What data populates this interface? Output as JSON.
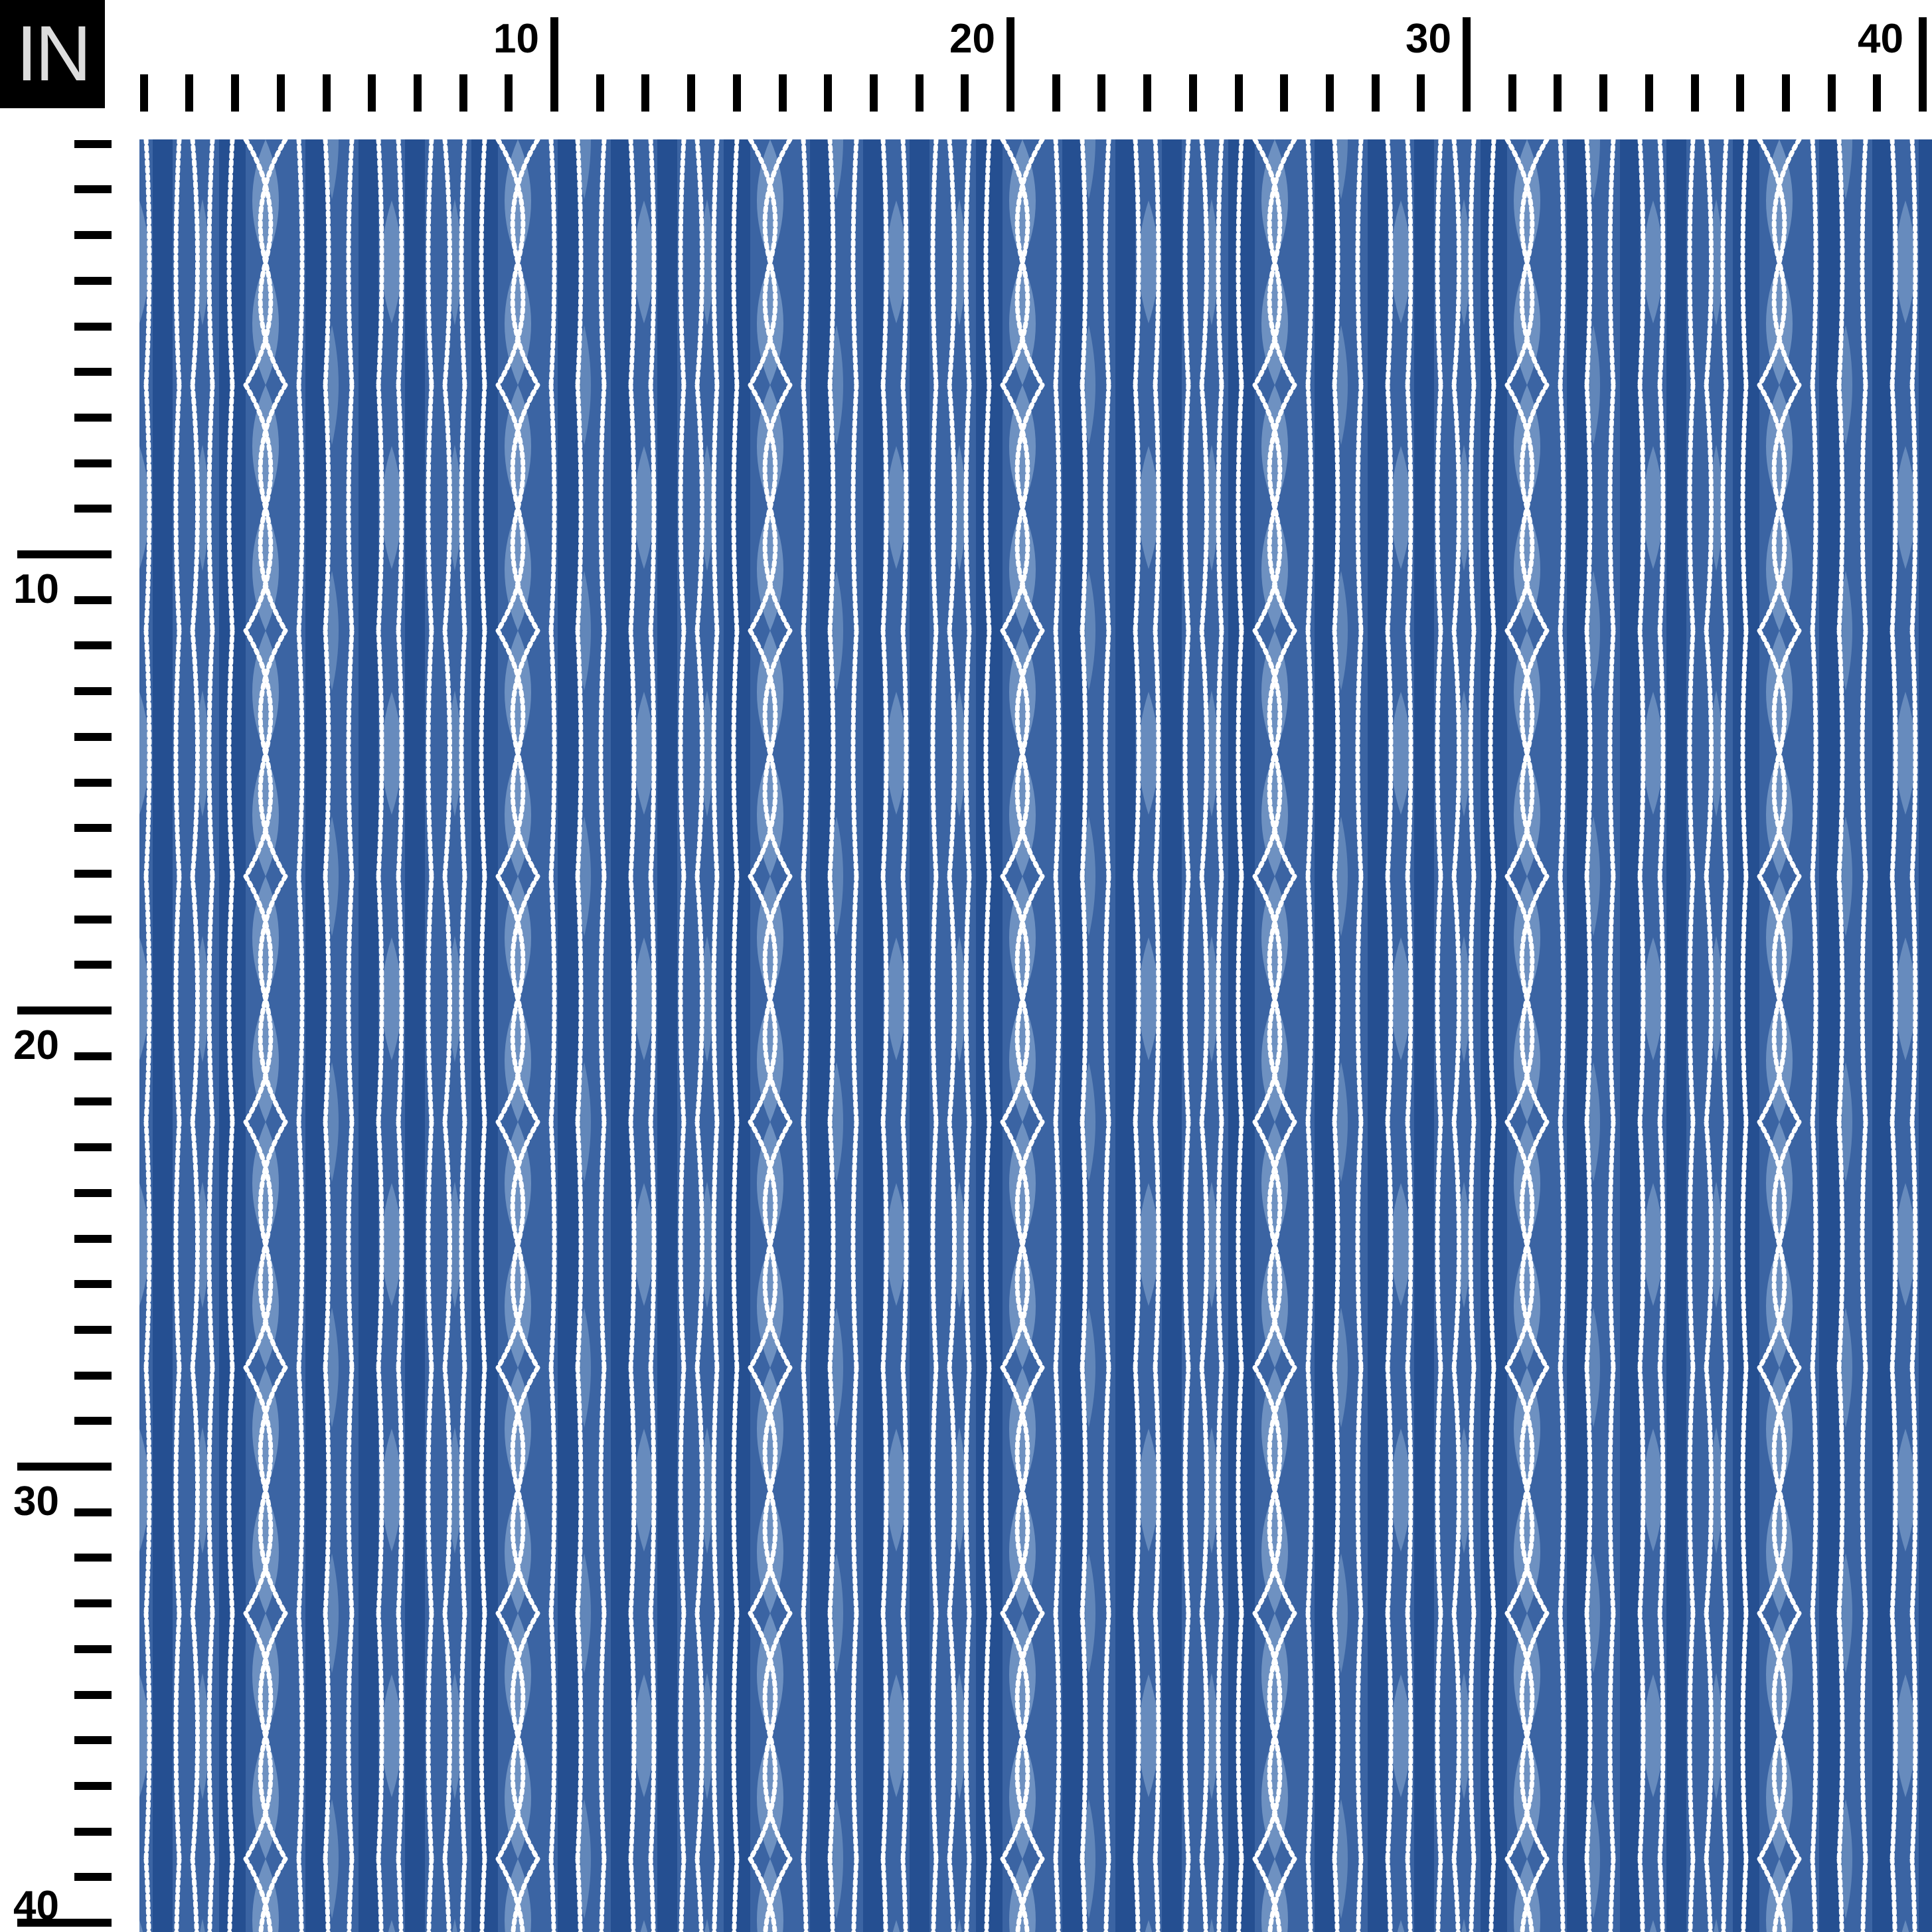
{
  "unit_badge": "IN",
  "top_ruler": {
    "labels": [
      "10",
      "20",
      "30",
      "40"
    ],
    "max_inches": 40
  },
  "left_ruler": {
    "labels": [
      "10",
      "20",
      "30",
      "40"
    ],
    "max_inches": 40
  },
  "fabric": {
    "pattern": "blue shibori-style vertical stripes with white dotted wavy lines",
    "colors": {
      "base": "#3b64a3",
      "dark": "#1f4a8c",
      "light": "#7a9cc8",
      "dots": "#ffffff"
    }
  }
}
